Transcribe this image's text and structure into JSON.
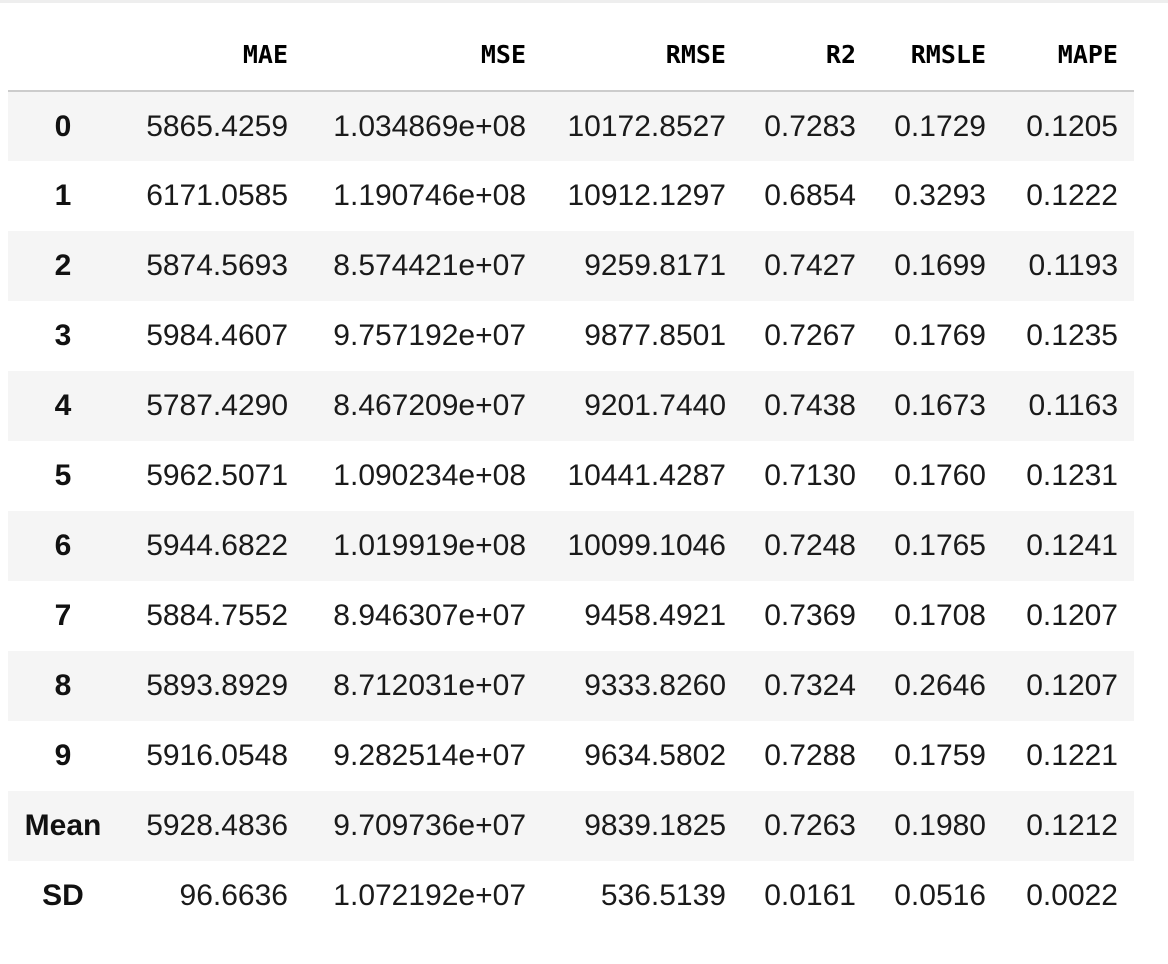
{
  "table": {
    "columns": [
      "",
      "MAE",
      "MSE",
      "RMSE",
      "R2",
      "RMSLE",
      "MAPE"
    ],
    "rows": [
      {
        "index": "0",
        "MAE": "5865.4259",
        "MSE": "1.034869e+08",
        "RMSE": "10172.8527",
        "R2": "0.7283",
        "RMSLE": "0.1729",
        "MAPE": "0.1205"
      },
      {
        "index": "1",
        "MAE": "6171.0585",
        "MSE": "1.190746e+08",
        "RMSE": "10912.1297",
        "R2": "0.6854",
        "RMSLE": "0.3293",
        "MAPE": "0.1222"
      },
      {
        "index": "2",
        "MAE": "5874.5693",
        "MSE": "8.574421e+07",
        "RMSE": "9259.8171",
        "R2": "0.7427",
        "RMSLE": "0.1699",
        "MAPE": "0.1193"
      },
      {
        "index": "3",
        "MAE": "5984.4607",
        "MSE": "9.757192e+07",
        "RMSE": "9877.8501",
        "R2": "0.7267",
        "RMSLE": "0.1769",
        "MAPE": "0.1235"
      },
      {
        "index": "4",
        "MAE": "5787.4290",
        "MSE": "8.467209e+07",
        "RMSE": "9201.7440",
        "R2": "0.7438",
        "RMSLE": "0.1673",
        "MAPE": "0.1163"
      },
      {
        "index": "5",
        "MAE": "5962.5071",
        "MSE": "1.090234e+08",
        "RMSE": "10441.4287",
        "R2": "0.7130",
        "RMSLE": "0.1760",
        "MAPE": "0.1231"
      },
      {
        "index": "6",
        "MAE": "5944.6822",
        "MSE": "1.019919e+08",
        "RMSE": "10099.1046",
        "R2": "0.7248",
        "RMSLE": "0.1765",
        "MAPE": "0.1241"
      },
      {
        "index": "7",
        "MAE": "5884.7552",
        "MSE": "8.946307e+07",
        "RMSE": "9458.4921",
        "R2": "0.7369",
        "RMSLE": "0.1708",
        "MAPE": "0.1207"
      },
      {
        "index": "8",
        "MAE": "5893.8929",
        "MSE": "8.712031e+07",
        "RMSE": "9333.8260",
        "R2": "0.7324",
        "RMSLE": "0.2646",
        "MAPE": "0.1207"
      },
      {
        "index": "9",
        "MAE": "5916.0548",
        "MSE": "9.282514e+07",
        "RMSE": "9634.5802",
        "R2": "0.7288",
        "RMSLE": "0.1759",
        "MAPE": "0.1221"
      },
      {
        "index": "Mean",
        "MAE": "5928.4836",
        "MSE": "9.709736e+07",
        "RMSE": "9839.1825",
        "R2": "0.7263",
        "RMSLE": "0.1980",
        "MAPE": "0.1212"
      },
      {
        "index": "SD",
        "MAE": "96.6636",
        "MSE": "1.072192e+07",
        "RMSE": "536.5139",
        "R2": "0.0161",
        "RMSLE": "0.0516",
        "MAPE": "0.0022"
      }
    ]
  }
}
